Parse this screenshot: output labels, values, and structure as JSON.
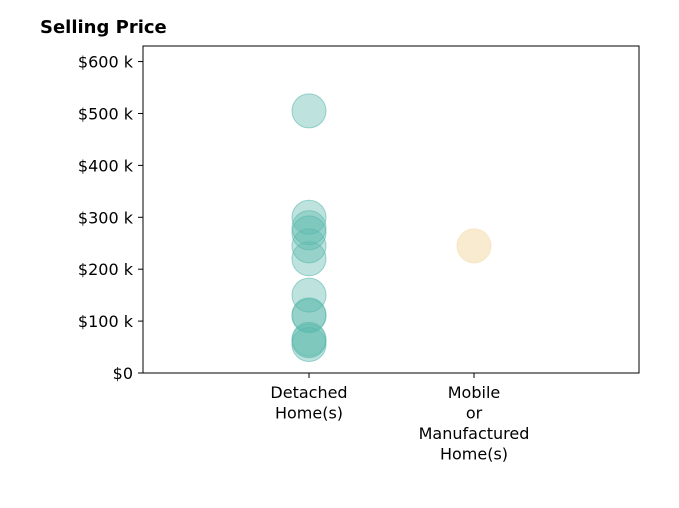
{
  "chart_data": {
    "type": "scatter",
    "title": "Selling Price",
    "xlabel": "",
    "ylabel": "",
    "categories": [
      [
        "Detached",
        "Home(s)"
      ],
      [
        "Mobile",
        "or",
        "Manufactured",
        "Home(s)"
      ]
    ],
    "y_ticks": [
      {
        "value": 0,
        "label": "$0"
      },
      {
        "value": 100000,
        "label": "$100 k"
      },
      {
        "value": 200000,
        "label": "$200 k"
      },
      {
        "value": 300000,
        "label": "$300 k"
      },
      {
        "value": 400000,
        "label": "$400 k"
      },
      {
        "value": 500000,
        "label": "$500 k"
      },
      {
        "value": 600000,
        "label": "$600 k"
      }
    ],
    "ylim": [
      0,
      630000
    ],
    "grid": false,
    "series": [
      {
        "category_index": 0,
        "color": "#5cb8ad",
        "values": [
          505000,
          300000,
          280000,
          270000,
          245000,
          220000,
          150000,
          112000,
          110000,
          65000,
          62000,
          55000
        ]
      },
      {
        "category_index": 1,
        "color": "#f5deb0",
        "values": [
          245000
        ]
      }
    ]
  }
}
